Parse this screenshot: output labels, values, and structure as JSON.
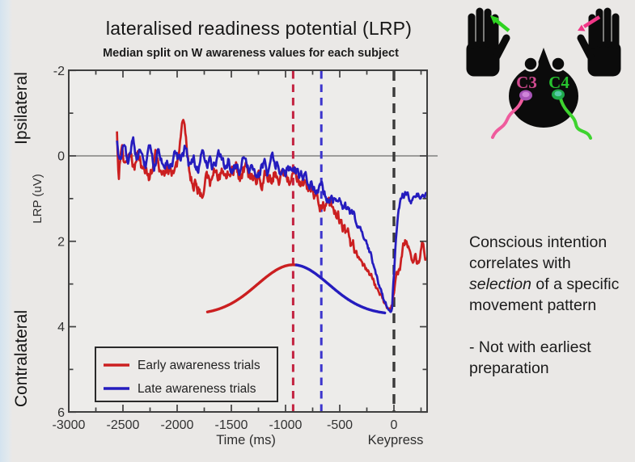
{
  "labels": {
    "ipsilateral": "Ipsilateral",
    "contralateral": "Contralateral"
  },
  "side_text": {
    "para1_line1": "Conscious intention",
    "para1_line2": "correlates with",
    "para1_line3_italic": "selection",
    "para1_line3_rest": " of a specific",
    "para1_line4": "movement pattern",
    "para2_line1": "- Not with earliest",
    "para2_line2": "preparation"
  },
  "illustration": {
    "c3_label": "C3",
    "c4_label": "C4",
    "c3_color": "#d14a90",
    "c4_color": "#27c32f",
    "left_hand_arrow_color": "#2ed321",
    "right_hand_arrow_color": "#f03787",
    "c3_wire_color": "#ef5b9d",
    "c4_wire_color": "#3ed32f"
  },
  "chart_data": {
    "type": "line",
    "title": "lateralised readiness potential (LRP)",
    "subtitle": "Median split on W awareness values for each subject",
    "xlabel": "Time (ms)",
    "ylabel": "LRP (uV)",
    "keypress_label": "Keypress",
    "x_axis": {
      "range_ms": [
        -3000,
        306
      ],
      "major_ticks": [
        -3000,
        -2500,
        -2000,
        -1500,
        -1000,
        -500,
        0
      ],
      "minor_tick_step_ms": 250
    },
    "y_axis": {
      "range_uV": [
        -2,
        6
      ],
      "inverted_down_positive": true,
      "major_ticks": [
        -2,
        0,
        2,
        4,
        6
      ],
      "minor_ticks": [
        -1,
        1,
        3,
        5
      ],
      "region_label_top": "Ipsilateral",
      "region_label_bottom": "Contralateral"
    },
    "zero_line_uV": 0,
    "vlines_dashed": [
      {
        "name": "early-awareness-W-time",
        "t_ms": -930,
        "color": "#c32240"
      },
      {
        "name": "late-awareness-W-time",
        "t_ms": -670,
        "color": "#3c35cd"
      },
      {
        "name": "keypress",
        "t_ms": 0,
        "color": "#3a3a3a"
      }
    ],
    "bell_curve": {
      "peak_t_ms": -930,
      "sigma_ms": 330,
      "baseline_uV": 3.72,
      "peak_uV": 2.55,
      "range_ms": [
        -1720,
        -78
      ],
      "left_color": "#cb1f20",
      "right_color": "#251cbe",
      "color_switch_t_ms": -900
    },
    "series": [
      {
        "name": "Early awareness trials",
        "color": "#cb1f20",
        "noise_sd_uV": 0.14,
        "seed": 7,
        "anchors": [
          [
            -2555,
            -0.5
          ],
          [
            -2540,
            0.45
          ],
          [
            -2520,
            -0.15
          ],
          [
            -2480,
            0.1
          ],
          [
            -2440,
            -0.2
          ],
          [
            -2400,
            0.25
          ],
          [
            -2360,
            0.1
          ],
          [
            -2300,
            0.4
          ],
          [
            -2250,
            0.45
          ],
          [
            -2200,
            0.1
          ],
          [
            -2150,
            0.35
          ],
          [
            -2100,
            0.15
          ],
          [
            -2050,
            0.4
          ],
          [
            -2000,
            0.25
          ],
          [
            -1960,
            -0.55
          ],
          [
            -1930,
            -0.8
          ],
          [
            -1900,
            0.1
          ],
          [
            -1860,
            0.6
          ],
          [
            -1820,
            0.45
          ],
          [
            -1780,
            0.75
          ],
          [
            -1740,
            0.6
          ],
          [
            -1700,
            0.75
          ],
          [
            -1660,
            0.45
          ],
          [
            -1620,
            0.6
          ],
          [
            -1580,
            0.4
          ],
          [
            -1540,
            0.6
          ],
          [
            -1500,
            0.35
          ],
          [
            -1460,
            0.3
          ],
          [
            -1420,
            0.5
          ],
          [
            -1380,
            0.3
          ],
          [
            -1340,
            0.5
          ],
          [
            -1300,
            0.6
          ],
          [
            -1260,
            0.45
          ],
          [
            -1220,
            0.65
          ],
          [
            -1180,
            0.4
          ],
          [
            -1140,
            0.5
          ],
          [
            -1100,
            0.3
          ],
          [
            -1060,
            0.45
          ],
          [
            -1020,
            0.35
          ],
          [
            -980,
            0.5
          ],
          [
            -940,
            0.55
          ],
          [
            -900,
            0.45
          ],
          [
            -860,
            0.65
          ],
          [
            -820,
            0.75
          ],
          [
            -780,
            0.85
          ],
          [
            -740,
            0.9
          ],
          [
            -700,
            1.0
          ],
          [
            -660,
            1.05
          ],
          [
            -620,
            1.15
          ],
          [
            -580,
            1.25
          ],
          [
            -540,
            1.35
          ],
          [
            -500,
            1.55
          ],
          [
            -460,
            1.75
          ],
          [
            -420,
            1.95
          ],
          [
            -380,
            2.15
          ],
          [
            -340,
            2.3
          ],
          [
            -300,
            2.45
          ],
          [
            -260,
            2.6
          ],
          [
            -220,
            2.8
          ],
          [
            -180,
            3.0
          ],
          [
            -140,
            3.2
          ],
          [
            -100,
            3.4
          ],
          [
            -60,
            3.6
          ],
          [
            -30,
            3.65
          ],
          [
            0,
            3.35
          ],
          [
            30,
            2.95
          ],
          [
            60,
            2.6
          ],
          [
            90,
            2.15
          ],
          [
            120,
            2.0
          ],
          [
            150,
            2.15
          ],
          [
            180,
            2.3
          ],
          [
            210,
            2.45
          ],
          [
            240,
            2.3
          ],
          [
            270,
            2.0
          ],
          [
            290,
            2.2
          ],
          [
            306,
            2.25
          ]
        ]
      },
      {
        "name": "Late awareness trials",
        "color": "#251cbe",
        "noise_sd_uV": 0.11,
        "seed": 13,
        "anchors": [
          [
            -2555,
            -0.3
          ],
          [
            -2530,
            0.25
          ],
          [
            -2490,
            -0.25
          ],
          [
            -2450,
            0.15
          ],
          [
            -2410,
            -0.3
          ],
          [
            -2370,
            0.05
          ],
          [
            -2330,
            -0.2
          ],
          [
            -2290,
            0.15
          ],
          [
            -2250,
            -0.1
          ],
          [
            -2210,
            0.2
          ],
          [
            -2170,
            -0.15
          ],
          [
            -2130,
            0.1
          ],
          [
            -2090,
            -0.1
          ],
          [
            -2050,
            0.2
          ],
          [
            -2010,
            0.0
          ],
          [
            -1970,
            0.15
          ],
          [
            -1930,
            -0.1
          ],
          [
            -1890,
            0.25
          ],
          [
            -1850,
            0.05
          ],
          [
            -1810,
            0.25
          ],
          [
            -1770,
            0.0
          ],
          [
            -1730,
            0.2
          ],
          [
            -1690,
            0.05
          ],
          [
            -1650,
            0.3
          ],
          [
            -1610,
            0.1
          ],
          [
            -1570,
            0.25
          ],
          [
            -1530,
            0.05
          ],
          [
            -1490,
            0.3
          ],
          [
            -1450,
            0.15
          ],
          [
            -1410,
            0.35
          ],
          [
            -1370,
            0.1
          ],
          [
            -1330,
            0.3
          ],
          [
            -1290,
            0.15
          ],
          [
            -1250,
            0.35
          ],
          [
            -1210,
            0.2
          ],
          [
            -1170,
            0.35
          ],
          [
            -1130,
            0.15
          ],
          [
            -1090,
            0.3
          ],
          [
            -1050,
            0.25
          ],
          [
            -1010,
            0.4
          ],
          [
            -970,
            0.3
          ],
          [
            -930,
            0.45
          ],
          [
            -890,
            0.4
          ],
          [
            -850,
            0.55
          ],
          [
            -810,
            0.5
          ],
          [
            -770,
            0.65
          ],
          [
            -730,
            0.7
          ],
          [
            -690,
            0.8
          ],
          [
            -650,
            0.9
          ],
          [
            -610,
            0.95
          ],
          [
            -570,
            1.0
          ],
          [
            -530,
            1.05
          ],
          [
            -490,
            1.1
          ],
          [
            -450,
            1.2
          ],
          [
            -410,
            1.3
          ],
          [
            -370,
            1.45
          ],
          [
            -330,
            1.6
          ],
          [
            -290,
            1.8
          ],
          [
            -250,
            2.05
          ],
          [
            -210,
            2.35
          ],
          [
            -170,
            2.7
          ],
          [
            -130,
            3.05
          ],
          [
            -90,
            3.4
          ],
          [
            -50,
            3.65
          ],
          [
            -20,
            3.7
          ],
          [
            0,
            2.8
          ],
          [
            20,
            2.0
          ],
          [
            40,
            1.5
          ],
          [
            60,
            1.2
          ],
          [
            80,
            1.05
          ],
          [
            110,
            0.95
          ],
          [
            140,
            1.0
          ],
          [
            170,
            0.95
          ],
          [
            200,
            1.05
          ],
          [
            230,
            1.0
          ],
          [
            260,
            0.9
          ],
          [
            280,
            1.0
          ],
          [
            306,
            0.95
          ]
        ]
      }
    ],
    "legend": {
      "position": "bottom-left",
      "entries": [
        {
          "label": "Early awareness trials",
          "color": "#cb1f20"
        },
        {
          "label": "Late awareness trials",
          "color": "#251cbe"
        }
      ]
    }
  }
}
